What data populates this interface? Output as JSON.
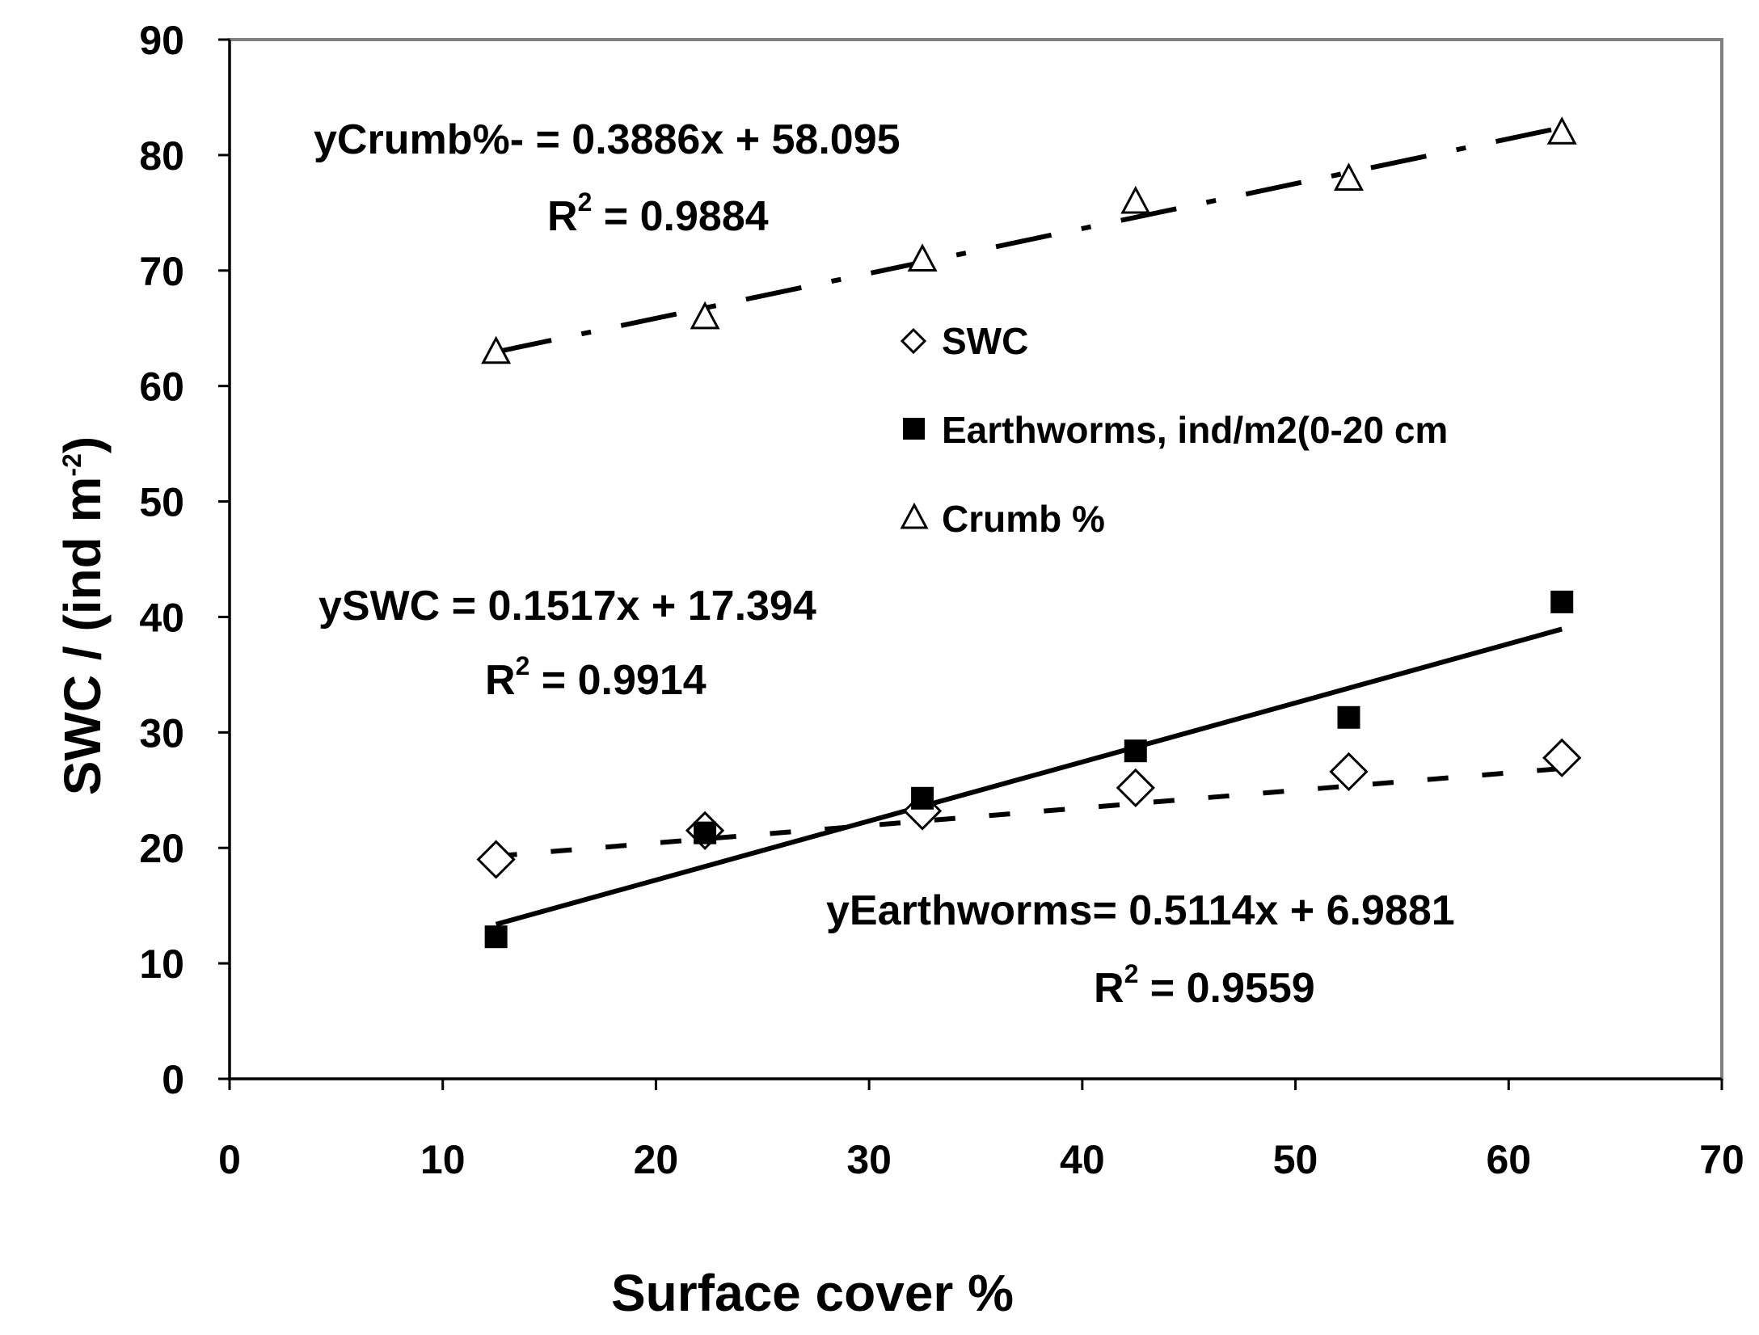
{
  "chart_data": {
    "type": "scatter",
    "xlabel": "Surface cover %",
    "ylabel_main": "SWC / (ind m",
    "ylabel_sup": "-2",
    "ylabel_end": ")",
    "xlim": [
      0,
      70
    ],
    "ylim": [
      0,
      90
    ],
    "xticks": [
      0,
      10,
      20,
      30,
      40,
      50,
      60,
      70
    ],
    "yticks": [
      0,
      10,
      20,
      30,
      40,
      50,
      60,
      70,
      80,
      90
    ],
    "grid": false,
    "legend_position": "center",
    "series": [
      {
        "name": "SWC",
        "marker": "diamond-open",
        "x": [
          12.5,
          22.3,
          32.5,
          42.5,
          52.5,
          62.5
        ],
        "y": [
          19.0,
          21.5,
          23.2,
          25.2,
          26.6,
          27.8
        ],
        "trend": {
          "slope": 0.1517,
          "intercept": 17.394,
          "style": "short-dash"
        }
      },
      {
        "name": "Earthworms, ind/m2(0-20 cm",
        "marker": "square-filled",
        "x": [
          12.5,
          22.3,
          32.5,
          42.5,
          52.5,
          62.5
        ],
        "y": [
          12.3,
          21.3,
          24.3,
          28.4,
          31.3,
          41.3
        ],
        "trend": {
          "slope": 0.5114,
          "intercept": 6.9881,
          "style": "solid"
        }
      },
      {
        "name": "Crumb %",
        "marker": "triangle-open",
        "x": [
          12.5,
          22.3,
          32.5,
          42.5,
          52.5,
          62.5
        ],
        "y": [
          63.0,
          66.0,
          71.0,
          76.0,
          78.0,
          82.0
        ],
        "trend": {
          "slope": 0.3886,
          "intercept": 58.095,
          "style": "long-dash-dot"
        }
      }
    ],
    "annotations": [
      {
        "id": "crumb",
        "line1": "yCrumb%- = 0.3886x + 58.095",
        "r2_prefix": "R",
        "r2_sup": "2",
        "r2_value": " = 0.9884"
      },
      {
        "id": "swc",
        "line1": "ySWC = 0.1517x + 17.394",
        "r2_prefix": "R",
        "r2_sup": "2",
        "r2_value": " = 0.9914"
      },
      {
        "id": "earthworms",
        "line1": "yEarthworms= 0.5114x + 6.9881",
        "r2_prefix": "R",
        "r2_sup": "2",
        "r2_value": " = 0.9559"
      }
    ]
  }
}
